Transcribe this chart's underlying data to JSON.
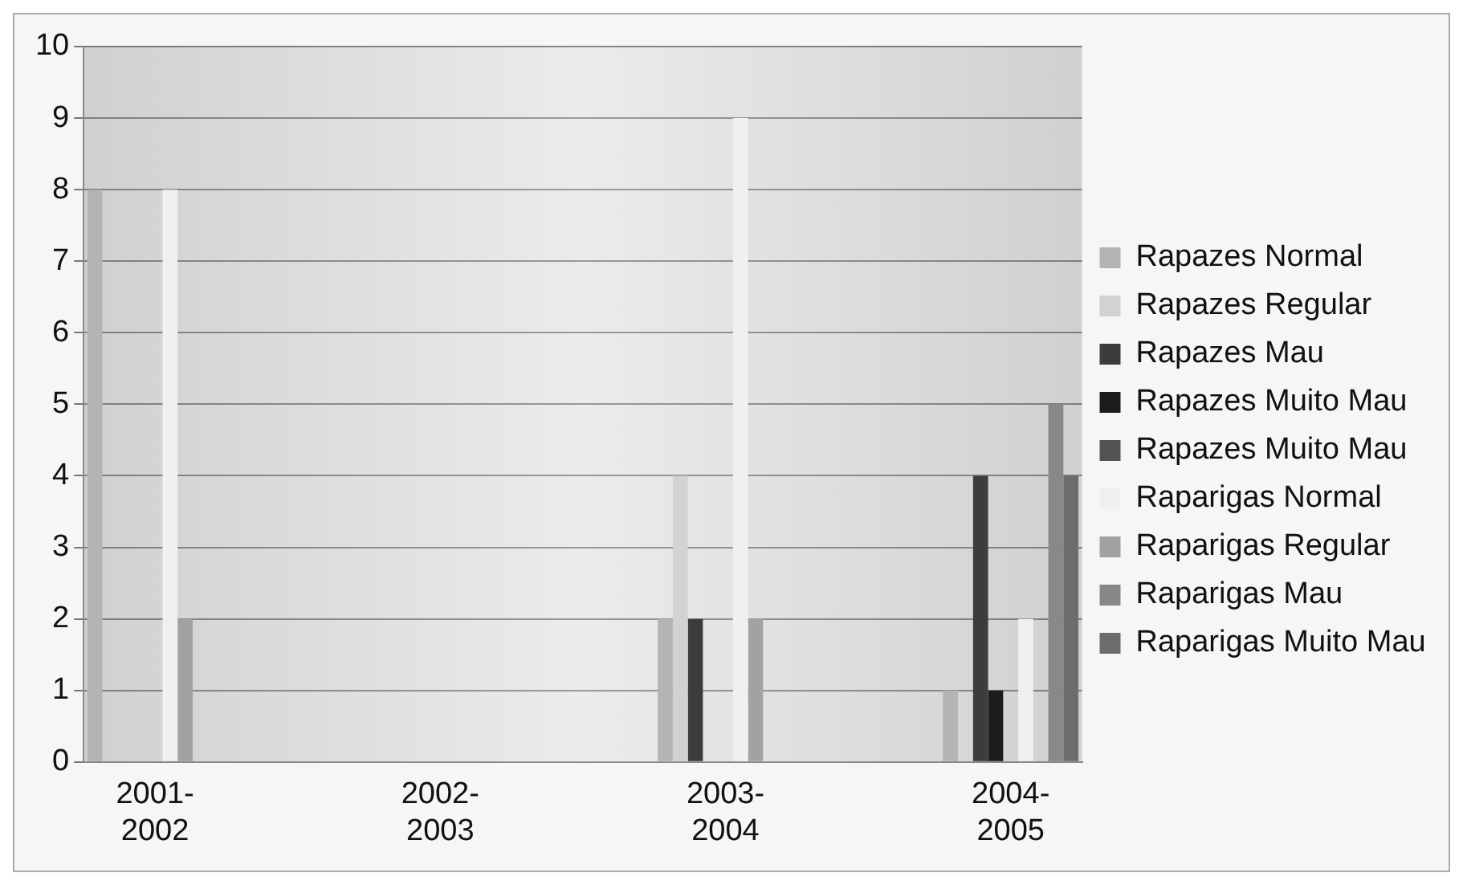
{
  "chart_data": {
    "type": "bar",
    "categories": [
      "2001-2002",
      null,
      "2002-2003",
      null,
      "2003-2004",
      null,
      "2004-2005"
    ],
    "series": [
      {
        "name": "Rapazes Normal",
        "color": "#b4b4b4",
        "values": [
          8,
          null,
          null,
          null,
          2,
          null,
          1
        ]
      },
      {
        "name": "Rapazes Regular",
        "color": "#d2d2d2",
        "values": [
          null,
          null,
          null,
          null,
          4,
          null,
          null
        ]
      },
      {
        "name": "Rapazes Mau",
        "color": "#3c3c3c",
        "values": [
          null,
          null,
          null,
          null,
          2,
          null,
          4
        ]
      },
      {
        "name": "Rapazes Muito Mau",
        "color": "#1c1c1c",
        "values": [
          null,
          null,
          null,
          null,
          null,
          null,
          1
        ]
      },
      {
        "name": "Rapazes Muito Mau",
        "color": "#525252",
        "values": [
          null,
          null,
          null,
          null,
          null,
          null,
          null
        ]
      },
      {
        "name": "Raparigas Normal",
        "color": "#f0f0f0",
        "values": [
          8,
          null,
          null,
          null,
          9,
          null,
          2
        ]
      },
      {
        "name": "Raparigas Regular",
        "color": "#a2a2a2",
        "values": [
          2,
          null,
          null,
          null,
          2,
          null,
          null
        ]
      },
      {
        "name": "Raparigas Mau",
        "color": "#888888",
        "values": [
          null,
          null,
          null,
          null,
          null,
          null,
          5
        ]
      },
      {
        "name": "Raparigas Muito Mau",
        "color": "#6c6c6c",
        "values": [
          null,
          null,
          null,
          null,
          null,
          null,
          4
        ]
      }
    ],
    "ylim": [
      0,
      10
    ],
    "yticks": [
      0,
      1,
      2,
      3,
      4,
      5,
      6,
      7,
      8,
      9,
      10
    ],
    "grid": "y",
    "legend": "right"
  }
}
